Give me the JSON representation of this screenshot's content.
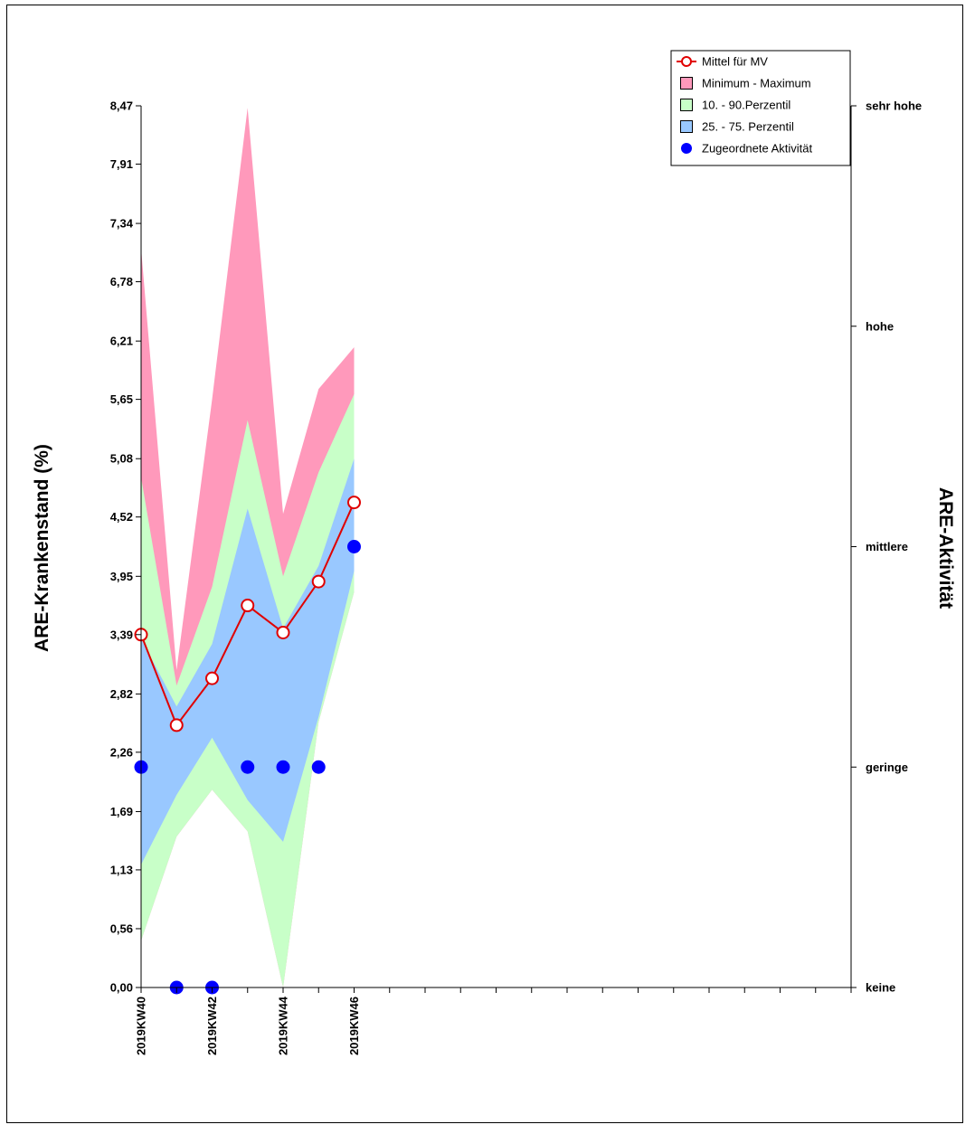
{
  "chart_data": {
    "type": "area",
    "ylabel": "ARE-Krankenstand (%)",
    "y2label": "ARE-Aktivität",
    "ylim": [
      0,
      8.47
    ],
    "ytick_values": [
      0,
      0.565,
      1.13,
      1.69,
      2.26,
      2.82,
      3.39,
      3.95,
      4.52,
      5.08,
      5.65,
      6.21,
      6.78,
      7.34,
      7.91,
      8.47
    ],
    "ytick_labels": [
      "0,00",
      "0,56",
      "1,13",
      "1,69",
      "2,26",
      "2,82",
      "3,39",
      "3,95",
      "4,52",
      "5,08",
      "5,65",
      "6,21",
      "6,78",
      "7,34",
      "7,91",
      "8,47"
    ],
    "y2_categories": [
      "keine",
      "geringe",
      "mittlere",
      "hohe",
      "sehr hohe"
    ],
    "x_labels": [
      "2019KW40",
      "",
      "2019KW42",
      "",
      "2019KW44",
      "",
      "2019KW46"
    ],
    "x_slots": 20,
    "series": [
      {
        "name": "Minimum - Maximum",
        "color": "#ff99bb",
        "low": [
          0.45,
          1.45,
          1.9,
          1.5,
          0.0,
          2.55,
          3.8
        ],
        "high": [
          7.1,
          3.05,
          5.65,
          8.45,
          4.55,
          5.75,
          6.15
        ]
      },
      {
        "name": "10. - 90.Perzentil",
        "color": "#c8ffc8",
        "low": [
          0.45,
          1.45,
          1.9,
          1.5,
          0.0,
          2.55,
          3.8
        ],
        "high": [
          4.9,
          2.9,
          3.85,
          5.45,
          3.95,
          4.95,
          5.7
        ]
      },
      {
        "name": "25. - 75. Perzentil",
        "color": "#99c8ff",
        "low": [
          1.18,
          1.85,
          2.4,
          1.8,
          1.4,
          2.6,
          4.0
        ],
        "high": [
          3.35,
          2.7,
          3.3,
          4.6,
          3.45,
          4.05,
          5.08
        ]
      },
      {
        "name": "Mittel für MV",
        "color": "#e00000",
        "values": [
          3.39,
          2.52,
          2.97,
          3.67,
          3.41,
          3.9,
          4.66
        ]
      },
      {
        "name": "Zugeordnete Aktivität",
        "color": "#0000ff",
        "values": [
          1,
          0,
          0,
          1,
          1,
          1,
          2
        ]
      }
    ],
    "legend_position": "top-right",
    "grid": false
  }
}
